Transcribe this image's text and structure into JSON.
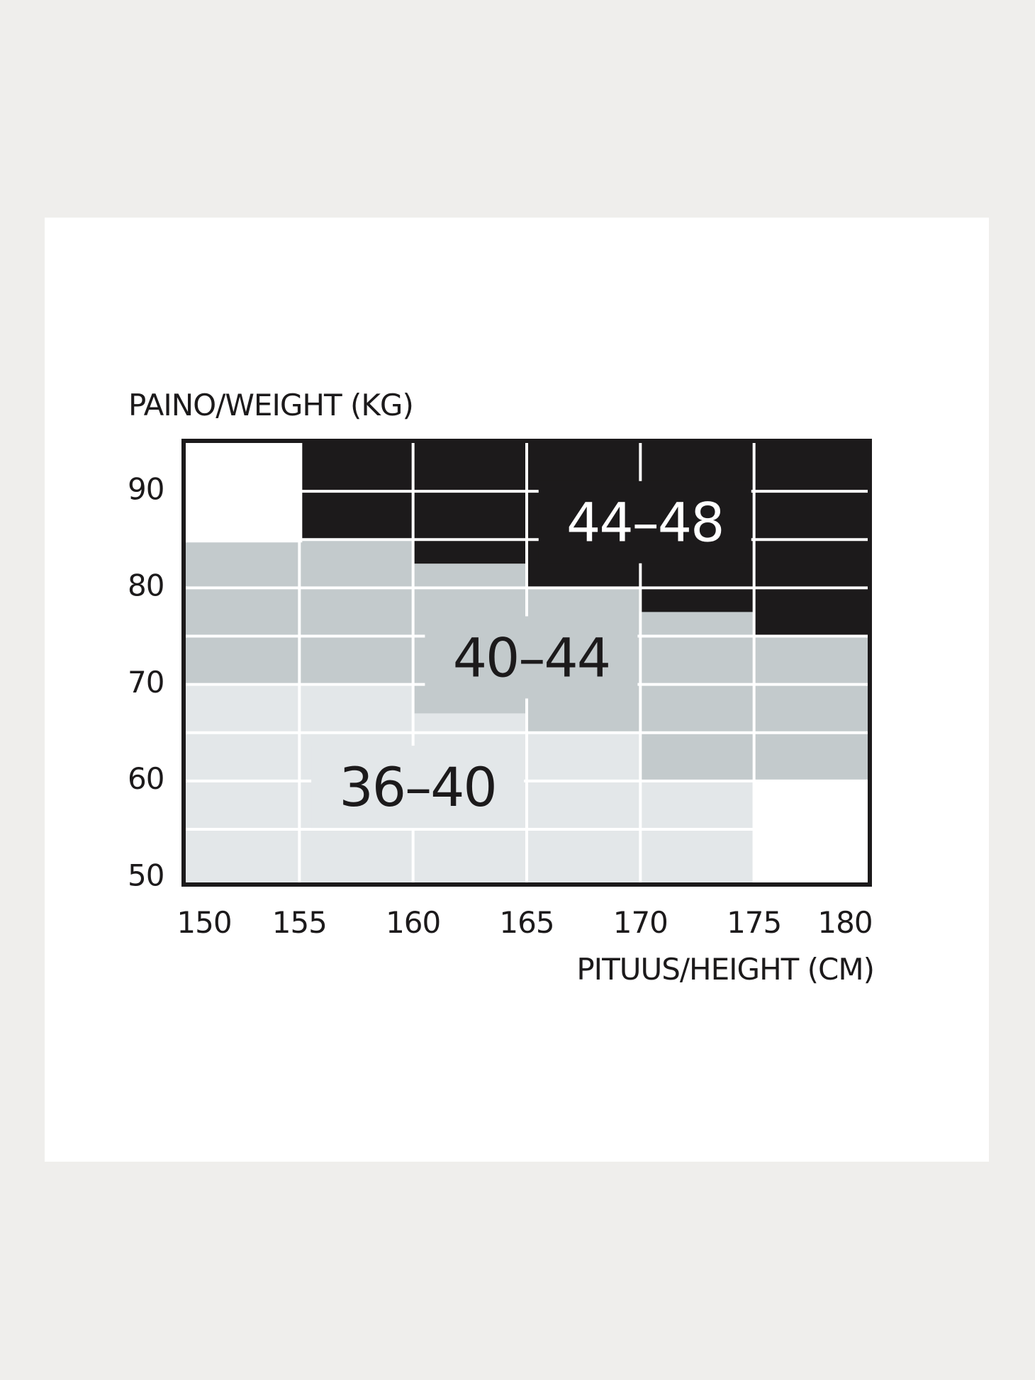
{
  "chart_data": {
    "type": "heatmap",
    "title": "",
    "xlabel": "PITUUS/HEIGHT (CM)",
    "ylabel": "PAINO/WEIGHT (KG)",
    "xlim": [
      150,
      180
    ],
    "ylim": [
      49,
      94.5
    ],
    "x_ticks": [
      "150",
      "155",
      "160",
      "165",
      "170",
      "175",
      "180"
    ],
    "x_tick_values": [
      150,
      155,
      160,
      165,
      170,
      175,
      180
    ],
    "y_ticks": [
      "90",
      "80",
      "70",
      "60",
      "50"
    ],
    "y_tick_values": [
      90,
      80,
      70,
      60,
      50
    ],
    "grid": true,
    "zones": [
      {
        "id": "z1",
        "label": "36–40",
        "color": "#e3e7e9",
        "text_color": "#1c1a1b",
        "label_at": [
          160.2,
          58.9
        ]
      },
      {
        "id": "z2",
        "label": "40–44",
        "color": "#c3cacc",
        "text_color": "#1c1a1b",
        "label_at": [
          165.2,
          72.3
        ]
      },
      {
        "id": "z3",
        "label": "44–48",
        "color": "#1c1a1b",
        "text_color": "#ffffff",
        "label_at": [
          170.2,
          86.3
        ]
      }
    ],
    "columns": [
      {
        "x": [
          150,
          155
        ],
        "segments": [
          {
            "zone": null,
            "from": 84.5,
            "to": 94.5
          },
          {
            "zone": "z2",
            "from": 69.5,
            "to": 84.5
          },
          {
            "zone": "z1",
            "from": 49,
            "to": 69.5
          }
        ]
      },
      {
        "x": [
          155,
          160
        ],
        "segments": [
          {
            "zone": "z3",
            "from": 84.5,
            "to": 94.5
          },
          {
            "zone": "z2",
            "from": 69.5,
            "to": 84.5
          },
          {
            "zone": "z1",
            "from": 49,
            "to": 69.5
          }
        ]
      },
      {
        "x": [
          160,
          165
        ],
        "segments": [
          {
            "zone": "z3",
            "from": 82,
            "to": 94.5
          },
          {
            "zone": "z2",
            "from": 66.5,
            "to": 82
          },
          {
            "zone": "z1",
            "from": 49,
            "to": 66.5
          }
        ]
      },
      {
        "x": [
          165,
          170
        ],
        "segments": [
          {
            "zone": "z3",
            "from": 79.5,
            "to": 94.5
          },
          {
            "zone": "z2",
            "from": 64.5,
            "to": 79.5
          },
          {
            "zone": "z1",
            "from": 49,
            "to": 64.5
          }
        ]
      },
      {
        "x": [
          170,
          175
        ],
        "segments": [
          {
            "zone": "z3",
            "from": 77,
            "to": 94.5
          },
          {
            "zone": "z2",
            "from": 59.5,
            "to": 77
          },
          {
            "zone": "z1",
            "from": 49,
            "to": 59.5
          }
        ]
      },
      {
        "x": [
          175,
          180
        ],
        "segments": [
          {
            "zone": "z3",
            "from": 74.5,
            "to": 94.5
          },
          {
            "zone": "z2",
            "from": 59.5,
            "to": 74.5
          },
          {
            "zone": null,
            "from": 49,
            "to": 59.5
          }
        ]
      }
    ],
    "grid_weights": [
      89.5,
      84.5,
      79.5,
      74.5,
      69.5,
      64.5,
      59.5,
      54.5
    ]
  }
}
